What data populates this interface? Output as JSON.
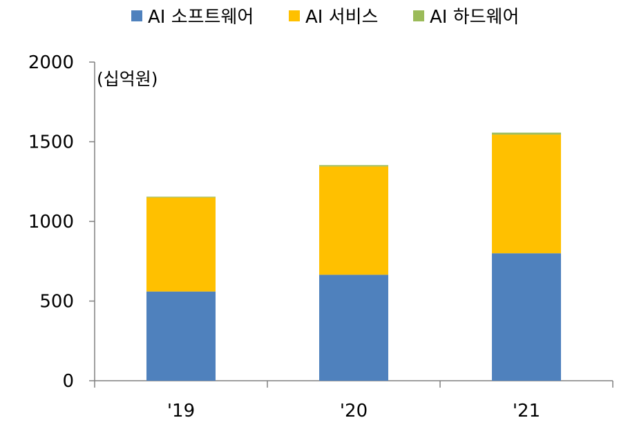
{
  "chart_data": {
    "type": "bar",
    "stacked": true,
    "categories": [
      "'19",
      "'20",
      "'21"
    ],
    "series": [
      {
        "name": "AI 소프트웨어",
        "color": "#4F81BD",
        "values": [
          560,
          665,
          800
        ]
      },
      {
        "name": "AI 서비스",
        "color": "#FFC000",
        "values": [
          590,
          680,
          745
        ]
      },
      {
        "name": "AI 하드웨어",
        "color": "#9BBB59",
        "values": [
          5,
          8,
          12
        ]
      }
    ],
    "ylim": [
      0,
      2000
    ],
    "yticks": [
      "0",
      "500",
      "1000",
      "1500",
      "2000"
    ],
    "unit": "(십억원)",
    "legend_position": "top",
    "grid": false
  }
}
